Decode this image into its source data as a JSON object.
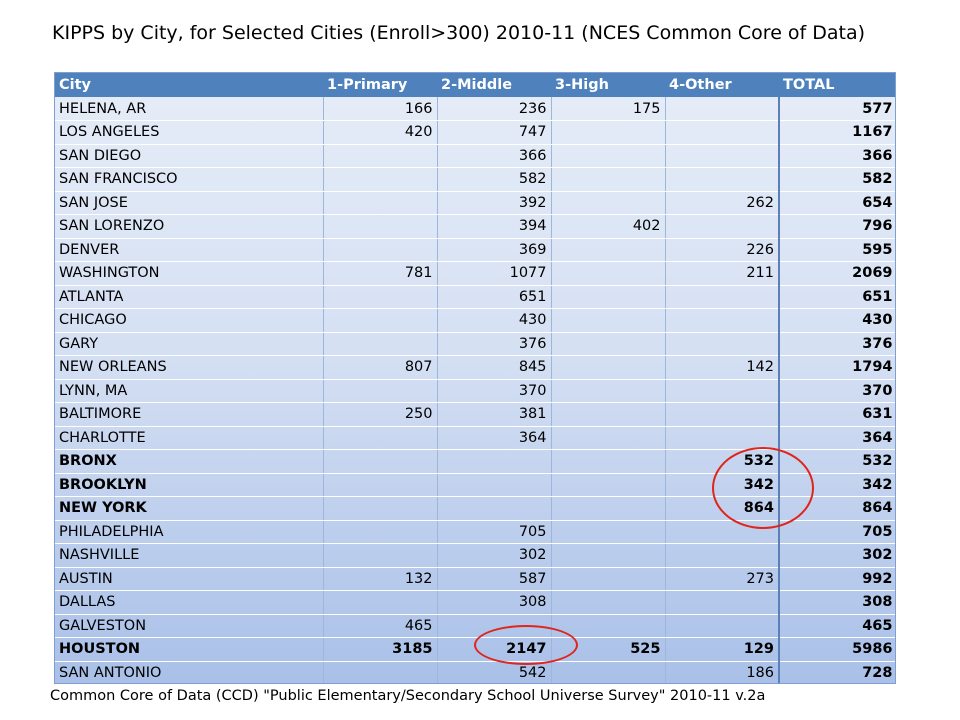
{
  "title": "KIPPS by City, for Selected Cities (Enroll>300) 2010-11 (NCES Common Core of Data)",
  "table": {
    "headers": [
      "City",
      "1-Primary",
      "2-Middle",
      "3-High",
      "4-Other",
      "TOTAL"
    ],
    "rows": [
      {
        "city": "HELENA, AR",
        "primary": "166",
        "middle": "236",
        "high": "175",
        "other": "",
        "total": "577",
        "bold": false
      },
      {
        "city": "LOS ANGELES",
        "primary": "420",
        "middle": "747",
        "high": "",
        "other": "",
        "total": "1167",
        "bold": false
      },
      {
        "city": "SAN DIEGO",
        "primary": "",
        "middle": "366",
        "high": "",
        "other": "",
        "total": "366",
        "bold": false
      },
      {
        "city": "SAN FRANCISCO",
        "primary": "",
        "middle": "582",
        "high": "",
        "other": "",
        "total": "582",
        "bold": false
      },
      {
        "city": "SAN JOSE",
        "primary": "",
        "middle": "392",
        "high": "",
        "other": "262",
        "total": "654",
        "bold": false
      },
      {
        "city": "SAN LORENZO",
        "primary": "",
        "middle": "394",
        "high": "402",
        "other": "",
        "total": "796",
        "bold": false
      },
      {
        "city": "DENVER",
        "primary": "",
        "middle": "369",
        "high": "",
        "other": "226",
        "total": "595",
        "bold": false
      },
      {
        "city": "WASHINGTON",
        "primary": "781",
        "middle": "1077",
        "high": "",
        "other": "211",
        "total": "2069",
        "bold": false
      },
      {
        "city": "ATLANTA",
        "primary": "",
        "middle": "651",
        "high": "",
        "other": "",
        "total": "651",
        "bold": false
      },
      {
        "city": "CHICAGO",
        "primary": "",
        "middle": "430",
        "high": "",
        "other": "",
        "total": "430",
        "bold": false
      },
      {
        "city": "GARY",
        "primary": "",
        "middle": "376",
        "high": "",
        "other": "",
        "total": "376",
        "bold": false
      },
      {
        "city": "NEW ORLEANS",
        "primary": "807",
        "middle": "845",
        "high": "",
        "other": "142",
        "total": "1794",
        "bold": false
      },
      {
        "city": "LYNN, MA",
        "primary": "",
        "middle": "370",
        "high": "",
        "other": "",
        "total": "370",
        "bold": false
      },
      {
        "city": "BALTIMORE",
        "primary": "250",
        "middle": "381",
        "high": "",
        "other": "",
        "total": "631",
        "bold": false
      },
      {
        "city": "CHARLOTTE",
        "primary": "",
        "middle": "364",
        "high": "",
        "other": "",
        "total": "364",
        "bold": false
      },
      {
        "city": "BRONX",
        "primary": "",
        "middle": "",
        "high": "",
        "other": "532",
        "total": "532",
        "bold": true
      },
      {
        "city": "BROOKLYN",
        "primary": "",
        "middle": "",
        "high": "",
        "other": "342",
        "total": "342",
        "bold": true
      },
      {
        "city": "NEW YORK",
        "primary": "",
        "middle": "",
        "high": "",
        "other": "864",
        "total": "864",
        "bold": true
      },
      {
        "city": "PHILADELPHIA",
        "primary": "",
        "middle": "705",
        "high": "",
        "other": "",
        "total": "705",
        "bold": false
      },
      {
        "city": "NASHVILLE",
        "primary": "",
        "middle": "302",
        "high": "",
        "other": "",
        "total": "302",
        "bold": false
      },
      {
        "city": "AUSTIN",
        "primary": "132",
        "middle": "587",
        "high": "",
        "other": "273",
        "total": "992",
        "bold": false
      },
      {
        "city": "DALLAS",
        "primary": "",
        "middle": "308",
        "high": "",
        "other": "",
        "total": "308",
        "bold": false
      },
      {
        "city": "GALVESTON",
        "primary": "465",
        "middle": "",
        "high": "",
        "other": "",
        "total": "465",
        "bold": false
      },
      {
        "city": "HOUSTON",
        "primary": "3185",
        "middle": "2147",
        "high": "525",
        "other": "129",
        "total": "5986",
        "bold": true
      },
      {
        "city": "SAN ANTONIO",
        "primary": "",
        "middle": "542",
        "high": "",
        "other": "186",
        "total": "728",
        "bold": false
      }
    ]
  },
  "footer": "Common Core of Data (CCD)  \"Public Elementary/Secondary School Universe Survey\"   2010-11 v.2a",
  "colors": {
    "header_bg": "#4f81bd",
    "annotation": "#e0251b"
  }
}
